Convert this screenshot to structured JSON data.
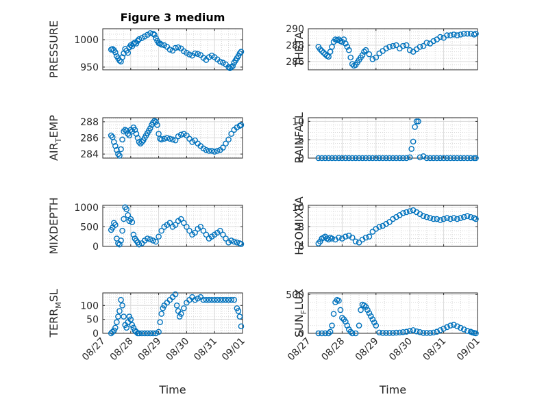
{
  "figure": {
    "title": "Figure 3 medium",
    "marker_color": "#0072BD",
    "axes_color": "#262626",
    "grid_color": "#d9d9d9"
  },
  "chart_data": [
    {
      "type": "scatter",
      "id": "pressure",
      "ylabel": "PRESSURE",
      "xlim": [
        0,
        5
      ],
      "ylim": [
        945,
        1020
      ],
      "yticks": [
        950,
        1000
      ],
      "xtick_labels": [],
      "x": [
        0.3,
        0.35,
        0.4,
        0.45,
        0.5,
        0.55,
        0.6,
        0.65,
        0.7,
        0.75,
        0.8,
        0.85,
        0.9,
        0.95,
        1.0,
        1.05,
        1.1,
        1.15,
        1.2,
        1.25,
        1.3,
        1.4,
        1.5,
        1.6,
        1.7,
        1.8,
        1.85,
        1.9,
        1.95,
        2.0,
        2.05,
        2.1,
        2.2,
        2.3,
        2.4,
        2.5,
        2.6,
        2.7,
        2.8,
        2.9,
        3.0,
        3.1,
        3.2,
        3.3,
        3.4,
        3.5,
        3.6,
        3.7,
        3.8,
        3.9,
        4.0,
        4.1,
        4.2,
        4.3,
        4.4,
        4.5,
        4.55,
        4.6,
        4.65,
        4.7,
        4.75,
        4.8,
        4.85,
        4.9,
        4.95
      ],
      "y": [
        982,
        983,
        981,
        977,
        970,
        966,
        962,
        960,
        968,
        975,
        983,
        980,
        976,
        986,
        990,
        988,
        993,
        995,
        993,
        998,
        1001,
        1003,
        1006,
        1009,
        1012,
        1011,
        1009,
        1003,
        998,
        994,
        993,
        991,
        990,
        987,
        982,
        980,
        985,
        986,
        984,
        979,
        976,
        973,
        971,
        975,
        974,
        972,
        967,
        963,
        968,
        971,
        968,
        964,
        960,
        958,
        955,
        950,
        948,
        950,
        952,
        958,
        962,
        966,
        970,
        975,
        978
      ]
    },
    {
      "type": "scatter",
      "id": "theta",
      "ylabel": "THETA",
      "xlim": [
        0,
        5
      ],
      "ylim": [
        285,
        290
      ],
      "yticks": [
        286,
        288,
        290
      ],
      "xtick_labels": [],
      "x": [
        0.3,
        0.35,
        0.4,
        0.45,
        0.5,
        0.55,
        0.6,
        0.65,
        0.7,
        0.75,
        0.8,
        0.85,
        0.9,
        0.95,
        1.0,
        1.05,
        1.1,
        1.15,
        1.2,
        1.25,
        1.3,
        1.35,
        1.4,
        1.45,
        1.5,
        1.55,
        1.6,
        1.65,
        1.7,
        1.8,
        1.9,
        2.0,
        2.1,
        2.2,
        2.3,
        2.4,
        2.5,
        2.6,
        2.7,
        2.8,
        2.9,
        3.0,
        3.1,
        3.2,
        3.3,
        3.4,
        3.5,
        3.6,
        3.7,
        3.8,
        3.9,
        4.0,
        4.1,
        4.2,
        4.3,
        4.4,
        4.5,
        4.6,
        4.7,
        4.8,
        4.9,
        4.95
      ],
      "y": [
        287.8,
        287.5,
        287.3,
        287.1,
        286.9,
        286.7,
        286.6,
        287.2,
        287.8,
        288.4,
        288.7,
        288.6,
        288.7,
        288.5,
        288.4,
        288.7,
        288.2,
        287.8,
        287.4,
        286.5,
        285.7,
        285.5,
        285.6,
        285.9,
        286.2,
        286.5,
        286.8,
        287.2,
        287.4,
        286.9,
        286.3,
        286.5,
        287.0,
        287.3,
        287.6,
        287.8,
        287.9,
        288.0,
        287.6,
        287.9,
        288.0,
        287.4,
        287.2,
        287.5,
        287.8,
        287.9,
        288.3,
        288.2,
        288.5,
        288.7,
        289.0,
        288.9,
        289.2,
        289.2,
        289.3,
        289.2,
        289.3,
        289.4,
        289.4,
        289.4,
        289.3,
        289.4
      ]
    },
    {
      "type": "scatter",
      "id": "air_temp",
      "ylabel": "AIR",
      "ylabel_sub": "T",
      "ylabel_tail": "EMP",
      "xlim": [
        0,
        5
      ],
      "ylim": [
        283.5,
        288.5
      ],
      "yticks": [
        284,
        286,
        288
      ],
      "xtick_labels": [],
      "x": [
        0.3,
        0.35,
        0.4,
        0.45,
        0.5,
        0.55,
        0.6,
        0.65,
        0.7,
        0.75,
        0.8,
        0.85,
        0.9,
        0.95,
        1.0,
        1.05,
        1.1,
        1.15,
        1.2,
        1.25,
        1.3,
        1.35,
        1.4,
        1.45,
        1.5,
        1.55,
        1.6,
        1.65,
        1.7,
        1.75,
        1.8,
        1.85,
        1.9,
        1.95,
        2.0,
        2.05,
        2.1,
        2.2,
        2.3,
        2.4,
        2.5,
        2.6,
        2.7,
        2.8,
        2.9,
        3.0,
        3.1,
        3.2,
        3.3,
        3.4,
        3.5,
        3.6,
        3.7,
        3.8,
        3.9,
        4.0,
        4.1,
        4.2,
        4.3,
        4.4,
        4.5,
        4.6,
        4.7,
        4.8,
        4.9,
        4.95
      ],
      "y": [
        286.3,
        286.1,
        285.5,
        285.0,
        284.5,
        284.0,
        283.8,
        284.6,
        285.8,
        286.8,
        287.0,
        286.9,
        286.5,
        286.3,
        287.0,
        286.8,
        287.3,
        287.0,
        286.5,
        286.0,
        285.5,
        285.3,
        285.5,
        285.7,
        286.0,
        286.3,
        286.6,
        286.9,
        287.2,
        287.6,
        287.9,
        288.1,
        288.0,
        287.6,
        286.5,
        285.9,
        285.8,
        285.9,
        286.0,
        285.9,
        285.8,
        285.7,
        286.2,
        286.4,
        286.5,
        286.3,
        285.9,
        285.5,
        285.7,
        285.3,
        285.0,
        284.7,
        284.5,
        284.4,
        284.4,
        284.3,
        284.4,
        284.5,
        284.8,
        285.3,
        285.8,
        286.5,
        287.0,
        287.3,
        287.5,
        287.6
      ]
    },
    {
      "type": "scatter",
      "id": "rainfall",
      "ylabel": "RAINFALL",
      "xlim": [
        0,
        5
      ],
      "ylim": [
        0,
        11
      ],
      "yticks": [
        0,
        5,
        10
      ],
      "xtick_labels": [],
      "x": [
        0.3,
        0.4,
        0.5,
        0.6,
        0.7,
        0.8,
        0.9,
        1.0,
        1.1,
        1.2,
        1.3,
        1.4,
        1.5,
        1.6,
        1.7,
        1.8,
        1.9,
        2.0,
        2.1,
        2.2,
        2.3,
        2.4,
        2.5,
        2.6,
        2.7,
        2.8,
        2.9,
        3.0,
        3.05,
        3.1,
        3.15,
        3.2,
        3.25,
        3.3,
        3.4,
        3.5,
        3.6,
        3.7,
        3.8,
        3.9,
        4.0,
        4.1,
        4.2,
        4.3,
        4.4,
        4.5,
        4.6,
        4.7,
        4.8,
        4.9,
        4.95
      ],
      "y": [
        0,
        0,
        0,
        0,
        0,
        0,
        0,
        0,
        0,
        0,
        0,
        0,
        0,
        0,
        0,
        0,
        0,
        0,
        0,
        0,
        0,
        0,
        0,
        0,
        0,
        0,
        0,
        0.2,
        2.5,
        4.5,
        8.5,
        10.0,
        10.0,
        0.2,
        0.5,
        0,
        0,
        0,
        0,
        0,
        0,
        0,
        0,
        0,
        0,
        0,
        0,
        0,
        0,
        0,
        0
      ]
    },
    {
      "type": "scatter",
      "id": "mixdepth",
      "ylabel": "MIXDEPTH",
      "xlim": [
        0,
        5
      ],
      "ylim": [
        0,
        1050
      ],
      "yticks": [
        0,
        500,
        1000
      ],
      "xtick_labels": [],
      "x": [
        0.3,
        0.35,
        0.4,
        0.45,
        0.5,
        0.55,
        0.6,
        0.65,
        0.7,
        0.75,
        0.8,
        0.85,
        0.9,
        0.95,
        1.0,
        1.05,
        1.1,
        1.15,
        1.2,
        1.25,
        1.3,
        1.4,
        1.5,
        1.6,
        1.7,
        1.8,
        1.9,
        2.0,
        2.1,
        2.2,
        2.3,
        2.4,
        2.5,
        2.6,
        2.7,
        2.8,
        2.9,
        3.0,
        3.1,
        3.2,
        3.3,
        3.4,
        3.5,
        3.6,
        3.7,
        3.8,
        3.9,
        4.0,
        4.1,
        4.2,
        4.3,
        4.4,
        4.5,
        4.6,
        4.7,
        4.8,
        4.9,
        4.95
      ],
      "y": [
        420,
        480,
        600,
        550,
        200,
        80,
        50,
        150,
        400,
        700,
        1000,
        950,
        800,
        650,
        700,
        620,
        300,
        200,
        150,
        100,
        50,
        80,
        150,
        200,
        180,
        150,
        120,
        250,
        400,
        500,
        550,
        600,
        500,
        550,
        650,
        700,
        600,
        500,
        400,
        300,
        350,
        450,
        500,
        400,
        300,
        200,
        250,
        300,
        350,
        400,
        300,
        200,
        100,
        150,
        120,
        100,
        80,
        60
      ]
    },
    {
      "type": "scatter",
      "id": "h2omixra",
      "ylabel": "H2OMIXRA",
      "xlim": [
        0,
        5
      ],
      "ylim": [
        6,
        10.2
      ],
      "yticks": [
        6,
        8,
        10
      ],
      "xtick_labels": [],
      "x": [
        0.3,
        0.35,
        0.4,
        0.45,
        0.5,
        0.55,
        0.6,
        0.65,
        0.7,
        0.8,
        0.9,
        1.0,
        1.1,
        1.2,
        1.3,
        1.4,
        1.5,
        1.6,
        1.7,
        1.8,
        1.9,
        2.0,
        2.1,
        2.2,
        2.3,
        2.4,
        2.5,
        2.6,
        2.7,
        2.8,
        2.9,
        3.0,
        3.1,
        3.2,
        3.3,
        3.4,
        3.5,
        3.6,
        3.7,
        3.8,
        3.9,
        4.0,
        4.1,
        4.2,
        4.3,
        4.4,
        4.5,
        4.6,
        4.7,
        4.8,
        4.9,
        4.95
      ],
      "y": [
        6.3,
        6.5,
        6.8,
        6.9,
        7.0,
        6.8,
        6.7,
        6.9,
        6.8,
        6.7,
        6.9,
        6.8,
        7.0,
        7.1,
        6.9,
        6.5,
        6.4,
        6.7,
        6.9,
        7.0,
        7.5,
        7.8,
        8.0,
        8.1,
        8.3,
        8.5,
        8.8,
        9.0,
        9.2,
        9.4,
        9.5,
        9.6,
        9.7,
        9.5,
        9.3,
        9.1,
        9.0,
        8.9,
        8.8,
        8.8,
        8.7,
        8.8,
        8.9,
        8.8,
        8.9,
        8.8,
        8.9,
        9.0,
        9.1,
        9.0,
        8.9,
        8.8
      ]
    },
    {
      "type": "scatter",
      "id": "terr_msl",
      "ylabel": "TERR",
      "ylabel_sub": "M",
      "ylabel_tail": "SL",
      "xlim": [
        0,
        5
      ],
      "ylim": [
        0,
        145
      ],
      "yticks": [
        0,
        50,
        100
      ],
      "xtick_labels": [
        "08/27",
        "08/28",
        "08/29",
        "08/30",
        "08/31",
        "09/01"
      ],
      "xlabel": "Time",
      "x": [
        0.3,
        0.35,
        0.4,
        0.45,
        0.5,
        0.55,
        0.6,
        0.65,
        0.7,
        0.75,
        0.8,
        0.85,
        0.9,
        0.95,
        1.0,
        1.05,
        1.1,
        1.15,
        1.2,
        1.25,
        1.3,
        1.4,
        1.5,
        1.6,
        1.7,
        1.8,
        1.9,
        2.0,
        2.05,
        2.1,
        2.15,
        2.2,
        2.3,
        2.4,
        2.5,
        2.6,
        2.65,
        2.7,
        2.75,
        2.8,
        2.9,
        3.0,
        3.1,
        3.2,
        3.3,
        3.4,
        3.5,
        3.6,
        3.7,
        3.8,
        3.9,
        4.0,
        4.1,
        4.2,
        4.3,
        4.4,
        4.5,
        4.6,
        4.7,
        4.8,
        4.85,
        4.9,
        4.95
      ],
      "y": [
        0,
        5,
        10,
        20,
        40,
        60,
        80,
        120,
        100,
        60,
        30,
        20,
        40,
        60,
        50,
        30,
        20,
        10,
        5,
        0,
        0,
        0,
        0,
        0,
        0,
        0,
        0,
        5,
        40,
        70,
        90,
        100,
        110,
        120,
        130,
        140,
        100,
        80,
        60,
        70,
        90,
        110,
        120,
        130,
        120,
        125,
        130,
        120,
        120,
        120,
        120,
        120,
        120,
        120,
        120,
        120,
        120,
        120,
        120,
        90,
        80,
        60,
        25
      ]
    },
    {
      "type": "scatter",
      "id": "sun_flux",
      "ylabel": "SUN",
      "ylabel_sub": "F",
      "ylabel_tail": "LUX",
      "xlim": [
        0,
        5
      ],
      "ylim": [
        0,
        520
      ],
      "yticks": [
        0,
        500
      ],
      "xtick_labels": [
        "08/27",
        "08/28",
        "08/29",
        "08/30",
        "08/31",
        "09/01"
      ],
      "xlabel": "Time",
      "x": [
        0.3,
        0.4,
        0.5,
        0.6,
        0.65,
        0.7,
        0.75,
        0.8,
        0.85,
        0.9,
        0.95,
        1.0,
        1.05,
        1.1,
        1.15,
        1.2,
        1.25,
        1.3,
        1.4,
        1.5,
        1.55,
        1.6,
        1.65,
        1.7,
        1.75,
        1.8,
        1.85,
        1.9,
        1.95,
        2.0,
        2.1,
        2.2,
        2.3,
        2.4,
        2.5,
        2.6,
        2.7,
        2.8,
        2.9,
        3.0,
        3.1,
        3.2,
        3.3,
        3.4,
        3.5,
        3.6,
        3.7,
        3.8,
        3.9,
        4.0,
        4.1,
        4.2,
        4.3,
        4.4,
        4.5,
        4.6,
        4.7,
        4.8,
        4.85,
        4.9,
        4.95
      ],
      "y": [
        0,
        0,
        0,
        0,
        20,
        100,
        250,
        400,
        430,
        420,
        300,
        200,
        180,
        150,
        100,
        50,
        20,
        0,
        0,
        100,
        300,
        370,
        360,
        340,
        300,
        260,
        220,
        180,
        140,
        100,
        10,
        5,
        5,
        5,
        5,
        8,
        10,
        15,
        20,
        30,
        40,
        25,
        15,
        5,
        5,
        5,
        10,
        20,
        40,
        60,
        80,
        100,
        110,
        90,
        70,
        50,
        30,
        20,
        10,
        5,
        0
      ]
    }
  ]
}
